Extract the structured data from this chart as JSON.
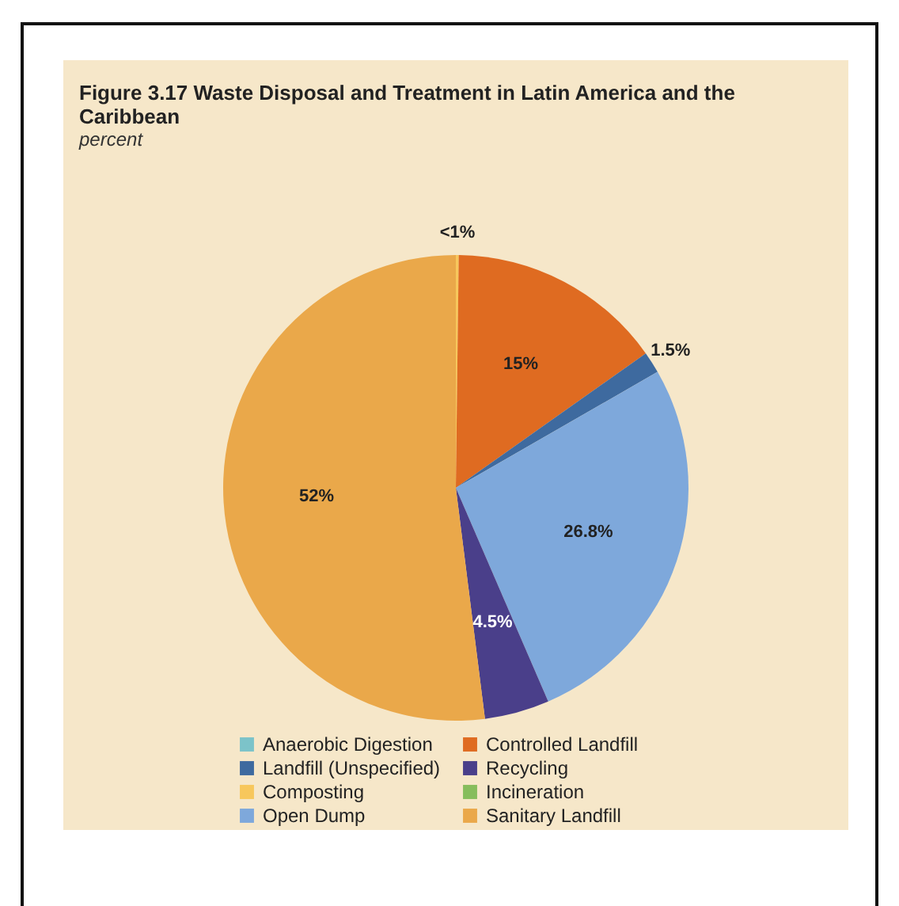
{
  "chart_data": {
    "type": "pie",
    "title": "Figure 3.17 Waste Disposal and Treatment in Latin America and the Caribbean",
    "subtitle": "percent",
    "categories": [
      "Anaerobic Digestion",
      "Composting",
      "Controlled Landfill",
      "Incineration",
      "Landfill (Unspecified)",
      "Open Dump",
      "Recycling",
      "Sanitary Landfill"
    ],
    "values": [
      0,
      0.2,
      15,
      0,
      1.5,
      26.8,
      4.5,
      52
    ],
    "value_labels": [
      null,
      "<1%",
      "15%",
      null,
      "1.5%",
      "26.8%",
      "4.5%",
      "52%"
    ],
    "colors": [
      "#7cc3c9",
      "#f7c75c",
      "#df6b21",
      "#86bd5c",
      "#3e6a9f",
      "#7ea8db",
      "#4a3f8a",
      "#eaa84a"
    ],
    "legend": "bottom"
  }
}
